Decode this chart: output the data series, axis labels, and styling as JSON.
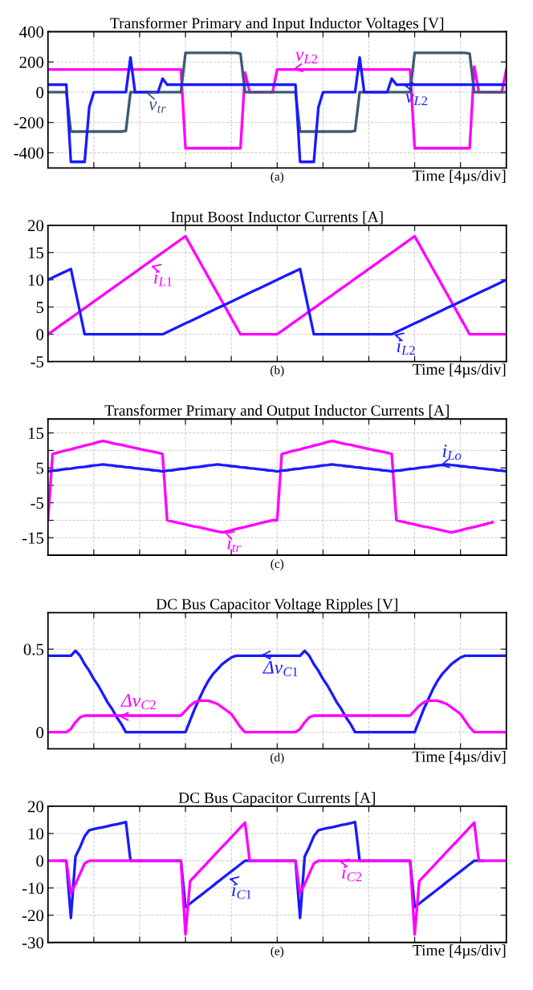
{
  "chart_data": [
    {
      "type": "line",
      "title": "Transformer Primary and Input Inductor Voltages [V]",
      "xlabel": "Time [4µs/div]",
      "categories": [
        null,
        null,
        null,
        null,
        null,
        null,
        null,
        null,
        null,
        null,
        null,
        null,
        null,
        null,
        null,
        null,
        null,
        null,
        null,
        null,
        null,
        null,
        null,
        null,
        null,
        null,
        null,
        null,
        null,
        null,
        null,
        null,
        null,
        null,
        null,
        null,
        null,
        null,
        null,
        null,
        null,
        null,
        null,
        null,
        null,
        null,
        null,
        null,
        null,
        null,
        null,
        null,
        null,
        null,
        null,
        null,
        null,
        null,
        null,
        null,
        null,
        null,
        null,
        null,
        null,
        null,
        null,
        null,
        null,
        null,
        null,
        null,
        null,
        null,
        null,
        null,
        null,
        null,
        null,
        null,
        null,
        null,
        null,
        null,
        null,
        null,
        null,
        null,
        null,
        null,
        null,
        null,
        null,
        null,
        null,
        null,
        null,
        null,
        null,
        null,
        null
      ],
      "ylim": [
        -500,
        400
      ],
      "yticks": [
        -400,
        -200,
        0,
        200,
        400
      ],
      "grid": true,
      "legend": "center",
      "tick_labels": "y",
      "line_style": "solid",
      "marker": "none",
      "series": [
        {
          "name": "v$_{L2}$",
          "color": "#ff00ff",
          "values": [
            150,
            150,
            150,
            150,
            150,
            150,
            150,
            150,
            150,
            150,
            150,
            150,
            150,
            150,
            150,
            150,
            150,
            150,
            150,
            150,
            150,
            150,
            150,
            150,
            150,
            150,
            150,
            150,
            150,
            150,
            -370,
            -370,
            -370,
            -370,
            -370,
            -370,
            -370,
            -370,
            -370,
            -370,
            -370,
            -370,
            -370,
            130,
            0,
            0,
            0,
            0,
            0,
            0,
            150,
            150,
            150,
            150,
            150,
            150,
            150,
            150,
            150,
            150,
            150,
            150,
            150,
            150,
            150,
            150,
            150,
            150,
            150,
            150,
            150,
            150,
            150,
            150,
            150,
            150,
            150,
            150,
            150,
            150,
            -370,
            -370,
            -370,
            -370,
            -370,
            -370,
            -370,
            -370,
            -370,
            -370,
            -370,
            -370,
            -370,
            170,
            0,
            0,
            0,
            0,
            0,
            0,
            150
          ]
        },
        {
          "name": "v$_{tr}$",
          "color": "#3d5a73",
          "values": [
            0,
            0,
            0,
            0,
            0,
            -260,
            -260,
            -260,
            -260,
            -260,
            -260,
            -260,
            -260,
            -260,
            -260,
            -260,
            -260,
            -255,
            0,
            0,
            0,
            0,
            0,
            0,
            0,
            0,
            0,
            0,
            0,
            0,
            260,
            260,
            260,
            260,
            260,
            260,
            260,
            260,
            260,
            260,
            260,
            260,
            255,
            0,
            0,
            0,
            0,
            0,
            0,
            0,
            0,
            0,
            0,
            0,
            0,
            -260,
            -260,
            -260,
            -260,
            -260,
            -260,
            -260,
            -260,
            -260,
            -260,
            -260,
            -260,
            -255,
            0,
            0,
            0,
            0,
            0,
            0,
            0,
            0,
            0,
            0,
            0,
            0,
            260,
            260,
            260,
            260,
            260,
            260,
            260,
            260,
            260,
            260,
            260,
            260,
            255,
            0,
            0,
            0,
            0,
            0,
            0,
            0,
            0
          ]
        },
        {
          "name": "v$_{L2}$",
          "color": "#1a1aff",
          "values": [
            50,
            50,
            50,
            50,
            50,
            -460,
            -460,
            -460,
            -460,
            -100,
            0,
            0,
            0,
            0,
            0,
            0,
            0,
            0,
            230,
            0,
            0,
            0,
            0,
            0,
            0,
            90,
            50,
            50,
            50,
            50,
            50,
            50,
            50,
            50,
            50,
            50,
            50,
            50,
            50,
            50,
            50,
            50,
            50,
            50,
            50,
            50,
            50,
            50,
            50,
            50,
            50,
            50,
            50,
            50,
            50,
            -460,
            -460,
            -460,
            -460,
            -100,
            0,
            0,
            0,
            0,
            0,
            0,
            0,
            0,
            230,
            0,
            0,
            0,
            0,
            0,
            0,
            90,
            50,
            50,
            50,
            50,
            50,
            50,
            50,
            50,
            50,
            50,
            50,
            50,
            50,
            50,
            50,
            50,
            50,
            50,
            50,
            50,
            50,
            50,
            50,
            50,
            50
          ]
        }
      ],
      "annotations": [
        "(a)"
      ]
    },
    {
      "type": "line",
      "title": "Input Boost Inductor Currents [A]",
      "xlabel": "Time [4µs/div]",
      "categories": [
        null,
        null,
        null,
        null,
        null,
        null,
        null,
        null,
        null,
        null,
        null,
        null,
        null,
        null,
        null,
        null,
        null,
        null,
        null,
        null,
        null,
        null,
        null,
        null,
        null,
        null,
        null,
        null,
        null,
        null,
        null,
        null,
        null,
        null,
        null,
        null,
        null,
        null,
        null,
        null,
        null,
        null,
        null,
        null,
        null,
        null,
        null,
        null,
        null,
        null,
        null,
        null,
        null,
        null,
        null,
        null,
        null,
        null,
        null,
        null,
        null,
        null,
        null,
        null,
        null,
        null,
        null,
        null,
        null,
        null,
        null,
        null,
        null,
        null,
        null,
        null,
        null,
        null,
        null,
        null,
        null,
        null,
        null,
        null,
        null,
        null,
        null,
        null,
        null,
        null,
        null,
        null,
        null,
        null,
        null,
        null,
        null,
        null,
        null,
        null,
        null
      ],
      "ylim": [
        -5,
        20
      ],
      "yticks": [
        -5,
        0,
        5,
        10,
        15,
        20
      ],
      "grid": true,
      "legend": "center",
      "tick_labels": "y",
      "line_style": "solid",
      "marker": "none",
      "series": [
        {
          "name": "i$_{L1}$",
          "color": "#ff00ff",
          "values": [
            0,
            0.6,
            1.2,
            1.8,
            2.4,
            3,
            3.6,
            4.2,
            4.8,
            5.4,
            6,
            6.6,
            7.2,
            7.8,
            8.4,
            9,
            9.6,
            10.2,
            10.8,
            11.4,
            12,
            12.6,
            13.2,
            13.8,
            14.4,
            15,
            15.6,
            16.2,
            16.8,
            17.4,
            18,
            16.5,
            15,
            13.5,
            12,
            10.5,
            9,
            7.5,
            6,
            4.5,
            3,
            1.5,
            0,
            0,
            0,
            0,
            0,
            0,
            0,
            0,
            0,
            0.6,
            1.2,
            1.8,
            2.4,
            3,
            3.6,
            4.2,
            4.8,
            5.4,
            6,
            6.6,
            7.2,
            7.8,
            8.4,
            9,
            9.6,
            10.2,
            10.8,
            11.4,
            12,
            12.6,
            13.2,
            13.8,
            14.4,
            15,
            15.6,
            16.2,
            16.8,
            17.4,
            18,
            16.5,
            15,
            13.5,
            12,
            10.5,
            9,
            7.5,
            6,
            4.5,
            3,
            1.5,
            0,
            0,
            0,
            0,
            0,
            0,
            0,
            0,
            0
          ]
        },
        {
          "name": "i$_{L2}$",
          "color": "#1a1aff",
          "values": [
            10,
            10.4,
            10.8,
            11.2,
            11.6,
            12,
            8,
            4,
            0,
            0,
            0,
            0,
            0,
            0,
            0,
            0,
            0,
            0,
            0,
            0,
            0,
            0,
            0,
            0,
            0,
            0,
            0.4,
            0.8,
            1.2,
            1.6,
            2,
            2.4,
            2.8,
            3.2,
            3.6,
            4,
            4.4,
            4.8,
            5.2,
            5.6,
            6,
            6.4,
            6.8,
            7.2,
            7.6,
            8,
            8.4,
            8.8,
            9.2,
            9.6,
            10,
            10.4,
            10.8,
            11.2,
            11.6,
            12,
            8,
            4,
            0,
            0,
            0,
            0,
            0,
            0,
            0,
            0,
            0,
            0,
            0,
            0,
            0,
            0,
            0,
            0,
            0,
            0,
            0.4,
            0.8,
            1.2,
            1.6,
            2,
            2.4,
            2.8,
            3.2,
            3.6,
            4,
            4.4,
            4.8,
            5.2,
            5.6,
            6,
            6.4,
            6.8,
            7.2,
            7.6,
            8,
            8.4,
            8.8,
            9.2,
            9.6,
            10
          ]
        }
      ],
      "annotations": [
        "(b)"
      ]
    },
    {
      "type": "line",
      "title": "Transformer Primary and Output Inductor Currents [A]",
      "categories": [
        null,
        null,
        null,
        null,
        null,
        null,
        null,
        null,
        null,
        null,
        null,
        null,
        null,
        null,
        null,
        null,
        null,
        null,
        null,
        null,
        null,
        null,
        null,
        null,
        null,
        null,
        null,
        null,
        null,
        null,
        null,
        null,
        null,
        null,
        null,
        null,
        null,
        null,
        null,
        null,
        null,
        null,
        null,
        null,
        null,
        null,
        null,
        null,
        null,
        null,
        null,
        null,
        null,
        null,
        null,
        null,
        null,
        null,
        null,
        null,
        null,
        null,
        null,
        null,
        null,
        null,
        null,
        null,
        null,
        null,
        null,
        null,
        null,
        null,
        null,
        null,
        null,
        null,
        null,
        null,
        null,
        null,
        null,
        null,
        null,
        null,
        null,
        null,
        null,
        null,
        null,
        null,
        null,
        null,
        null,
        null,
        null,
        null,
        null,
        null,
        null
      ],
      "ylim": [
        -20,
        19
      ],
      "yticks": [
        -15,
        {
          "value": -10,
          "label": null
        },
        -5,
        {
          "value": 0,
          "label": null
        },
        5,
        {
          "value": 10,
          "label": null
        },
        15
      ],
      "grid": true,
      "tick_labels": "y",
      "line_style": "solid",
      "marker": "none",
      "series": [
        {
          "name": "i$_{tr}$",
          "color": "#ff00ff",
          "values": [
            -10,
            9,
            9.3,
            9.7,
            10,
            10.3,
            10.7,
            11,
            11.4,
            11.7,
            12,
            12.4,
            12.7,
            12.4,
            12.1,
            11.8,
            11.6,
            11.3,
            11,
            10.7,
            10.4,
            10.1,
            9.9,
            9.6,
            9.3,
            9,
            -10,
            -10.3,
            -10.6,
            -10.9,
            -11.2,
            -11.5,
            -11.8,
            -12,
            -12.3,
            -12.6,
            -12.9,
            -13.2,
            -13.5,
            -13.2,
            -12.9,
            -12.5,
            -12.2,
            -11.9,
            -11.6,
            -11.3,
            -10.9,
            -10.6,
            -10.3,
            -10,
            -10,
            9,
            9.3,
            9.7,
            10,
            10.3,
            10.7,
            11,
            11.4,
            11.7,
            12,
            12.4,
            12.7,
            12.4,
            12.1,
            11.8,
            11.6,
            11.3,
            11,
            10.7,
            10.4,
            10.1,
            9.9,
            9.6,
            9.3,
            9,
            -10,
            -10.3,
            -10.6,
            -10.9,
            -11.2,
            -11.5,
            -11.8,
            -12,
            -12.3,
            -12.6,
            -12.9,
            -13.2,
            -13.5,
            -13.2,
            -12.9,
            -12.5,
            -12.2,
            -11.9,
            -11.6,
            -11.3,
            -10.9,
            -10.6,
            null,
            null,
            null
          ]
        },
        {
          "name": "i$_{Lo}$",
          "color": "#1a1aff",
          "values": [
            4,
            4.2,
            4.3,
            4.5,
            4.7,
            4.8,
            5,
            5.2,
            5.3,
            5.5,
            5.7,
            5.8,
            6,
            5.8,
            5.7,
            5.5,
            5.4,
            5.2,
            5.1,
            4.9,
            4.8,
            4.6,
            4.5,
            4.3,
            4.2,
            4,
            4.2,
            4.3,
            4.5,
            4.7,
            4.8,
            5,
            5.2,
            5.3,
            5.5,
            5.7,
            5.8,
            6,
            5.8,
            5.7,
            5.5,
            5.4,
            5.2,
            5.1,
            4.9,
            4.8,
            4.6,
            4.5,
            4.3,
            4.2,
            4,
            4.2,
            4.3,
            4.5,
            4.7,
            4.8,
            5,
            5.2,
            5.3,
            5.5,
            5.7,
            5.8,
            6,
            5.8,
            5.7,
            5.5,
            5.4,
            5.2,
            5.1,
            4.9,
            4.8,
            4.6,
            4.5,
            4.3,
            4.2,
            4,
            4.2,
            4.3,
            4.5,
            4.7,
            4.8,
            5,
            5.2,
            5.3,
            5.5,
            5.7,
            5.8,
            6,
            5.8,
            5.7,
            5.5,
            5.4,
            5.2,
            5.1,
            4.9,
            4.8,
            4.6,
            4.5,
            4.3,
            4.2,
            4
          ]
        }
      ],
      "annotations": [
        "(c)"
      ]
    },
    {
      "type": "line",
      "title": "DC Bus Capacitor Voltage Ripples [V]",
      "xlabel": "Time [4µs/div]",
      "categories": [
        null,
        null,
        null,
        null,
        null,
        null,
        null,
        null,
        null,
        null,
        null,
        null,
        null,
        null,
        null,
        null,
        null,
        null,
        null,
        null,
        null,
        null,
        null,
        null,
        null,
        null,
        null,
        null,
        null,
        null,
        null,
        null,
        null,
        null,
        null,
        null,
        null,
        null,
        null,
        null,
        null,
        null,
        null,
        null,
        null,
        null,
        null,
        null,
        null,
        null,
        null,
        null,
        null,
        null,
        null,
        null,
        null,
        null,
        null,
        null,
        null,
        null,
        null,
        null,
        null,
        null,
        null,
        null,
        null,
        null,
        null,
        null,
        null,
        null,
        null,
        null,
        null,
        null,
        null,
        null,
        null,
        null,
        null,
        null,
        null,
        null,
        null,
        null,
        null,
        null,
        null,
        null,
        null,
        null,
        null,
        null,
        null,
        null,
        null,
        null,
        null
      ],
      "ylim": [
        -0.1,
        0.72
      ],
      "yticks": [
        0,
        0.5
      ],
      "grid": true,
      "tick_labels": "y",
      "line_style": "solid",
      "marker": "none",
      "series": [
        {
          "name": "Δv$_{C1}$",
          "color": "#1a1aff",
          "values": [
            0.46,
            0.46,
            0.46,
            0.46,
            0.46,
            0.46,
            0.49,
            0.46,
            0.41,
            0.37,
            0.32,
            0.28,
            0.23,
            0.18,
            0.14,
            0.09,
            0.05,
            0,
            0,
            0,
            0,
            0,
            0,
            0,
            0,
            0,
            0,
            0,
            0,
            0,
            0,
            0.07,
            0.14,
            0.2,
            0.26,
            0.31,
            0.35,
            0.38,
            0.41,
            0.43,
            0.45,
            0.46,
            0.46,
            0.46,
            0.46,
            0.46,
            0.46,
            0.46,
            0.46,
            0.46,
            0.46,
            0.46,
            0.46,
            0.46,
            0.46,
            0.46,
            0.49,
            0.46,
            0.41,
            0.37,
            0.32,
            0.28,
            0.23,
            0.18,
            0.14,
            0.09,
            0.05,
            0,
            0,
            0,
            0,
            0,
            0,
            0,
            0,
            0,
            0,
            0,
            0,
            0,
            0,
            0.07,
            0.14,
            0.2,
            0.26,
            0.31,
            0.35,
            0.38,
            0.41,
            0.43,
            0.45,
            0.46,
            0.46,
            0.46,
            0.46,
            0.46,
            0.46,
            0.46,
            0.46,
            0.46,
            0.46
          ]
        },
        {
          "name": "Δv$_{C2}$",
          "color": "#ff00ff",
          "values": [
            0,
            0,
            0,
            0,
            0,
            0.02,
            0.06,
            0.09,
            0.1,
            0.1,
            0.1,
            0.1,
            0.1,
            0.1,
            0.1,
            0.1,
            0.1,
            0.1,
            0.1,
            0.1,
            0.1,
            0.1,
            0.1,
            0.1,
            0.1,
            0.1,
            0.1,
            0.1,
            0.1,
            0.1,
            0.13,
            0.16,
            0.18,
            0.19,
            0.19,
            0.19,
            0.18,
            0.17,
            0.15,
            0.13,
            0.11,
            0.07,
            0.03,
            0,
            0,
            0,
            0,
            0,
            0,
            0,
            0,
            0,
            0,
            0,
            0,
            0.02,
            0.06,
            0.09,
            0.1,
            0.1,
            0.1,
            0.1,
            0.1,
            0.1,
            0.1,
            0.1,
            0.1,
            0.1,
            0.1,
            0.1,
            0.1,
            0.1,
            0.1,
            0.1,
            0.1,
            0.1,
            0.1,
            0.1,
            0.1,
            0.1,
            0.13,
            0.16,
            0.18,
            0.19,
            0.19,
            0.19,
            0.18,
            0.17,
            0.15,
            0.13,
            0.11,
            0.07,
            0.03,
            0,
            0,
            0,
            0,
            0,
            0,
            0,
            0
          ]
        }
      ],
      "annotations": [
        "(d)"
      ]
    },
    {
      "type": "line",
      "title": "DC Bus Capacitor Currents [A]",
      "xlabel": "Time [4µs/div]",
      "categories": [
        null,
        null,
        null,
        null,
        null,
        null,
        null,
        null,
        null,
        null,
        null,
        null,
        null,
        null,
        null,
        null,
        null,
        null,
        null,
        null,
        null,
        null,
        null,
        null,
        null,
        null,
        null,
        null,
        null,
        null,
        null,
        null,
        null,
        null,
        null,
        null,
        null,
        null,
        null,
        null,
        null,
        null,
        null,
        null,
        null,
        null,
        null,
        null,
        null,
        null,
        null,
        null,
        null,
        null,
        null,
        null,
        null,
        null,
        null,
        null,
        null,
        null,
        null,
        null,
        null,
        null,
        null,
        null,
        null,
        null,
        null,
        null,
        null,
        null,
        null,
        null,
        null,
        null,
        null,
        null,
        null,
        null,
        null,
        null,
        null,
        null,
        null,
        null,
        null,
        null,
        null,
        null,
        null,
        null,
        null,
        null,
        null,
        null,
        null,
        null,
        null
      ],
      "ylim": [
        -30,
        20
      ],
      "yticks": [
        -30,
        -20,
        -10,
        0,
        10,
        20
      ],
      "grid": true,
      "legend": "center",
      "tick_labels": "y",
      "line_style": "solid",
      "marker": "none",
      "series": [
        {
          "name": "i$_{C1}$",
          "color": "#1a1aff",
          "values": [
            null,
            null,
            null,
            0,
            0,
            -21,
            1.5,
            5,
            9,
            11.2,
            11.6,
            12,
            12.3,
            12.7,
            13.1,
            13.4,
            13.8,
            14.2,
            0,
            0,
            0,
            0,
            0,
            0,
            0,
            0,
            0,
            0,
            0,
            0,
            -17,
            -15.7,
            -14.4,
            -13.1,
            -11.8,
            -10.5,
            -9.2,
            -7.8,
            -6.5,
            -5.2,
            -3.9,
            -2.6,
            -1.3,
            0,
            0,
            0,
            0,
            0,
            0,
            0,
            0,
            0,
            0,
            0,
            0,
            -21,
            1.5,
            5,
            9,
            11.2,
            11.6,
            12,
            12.3,
            12.7,
            13.1,
            13.4,
            13.8,
            14.2,
            0,
            0,
            0,
            0,
            0,
            0,
            0,
            0,
            0,
            0,
            0,
            0,
            -17,
            -15.7,
            -14.4,
            -13.1,
            -11.8,
            -10.5,
            -9.2,
            -7.8,
            -6.5,
            -5.2,
            -3.9,
            -2.6,
            -1.3,
            0,
            0,
            0,
            null,
            null,
            null,
            null,
            null
          ]
        },
        {
          "name": "i$_{C2}$",
          "color": "#ff00ff",
          "values": [
            0,
            0,
            0,
            0,
            0,
            -12,
            -8.6,
            -4.8,
            -1,
            0,
            0,
            0,
            0,
            0,
            0,
            0,
            0,
            0,
            0,
            0,
            0,
            0,
            0,
            0,
            0,
            0,
            0,
            0,
            0,
            0,
            -27,
            -7.5,
            -5.7,
            -3.9,
            -2.1,
            -0.3,
            1.5,
            3.3,
            5.1,
            6.8,
            8.6,
            10.4,
            12.2,
            14,
            0,
            0,
            0,
            0,
            0,
            0,
            0,
            0,
            0,
            0,
            0,
            -12,
            -8.6,
            -4.8,
            -1,
            0,
            0,
            0,
            0,
            0,
            0,
            0,
            0,
            0,
            0,
            0,
            0,
            0,
            0,
            0,
            0,
            0,
            0,
            0,
            0,
            0,
            -27,
            -7.5,
            -5.7,
            -3.9,
            -2.1,
            -0.3,
            1.5,
            3.3,
            5.1,
            6.8,
            8.6,
            10.4,
            12.2,
            14,
            0,
            0,
            0,
            0,
            0,
            0,
            0
          ]
        }
      ],
      "annotations": [
        "(e)"
      ]
    }
  ]
}
